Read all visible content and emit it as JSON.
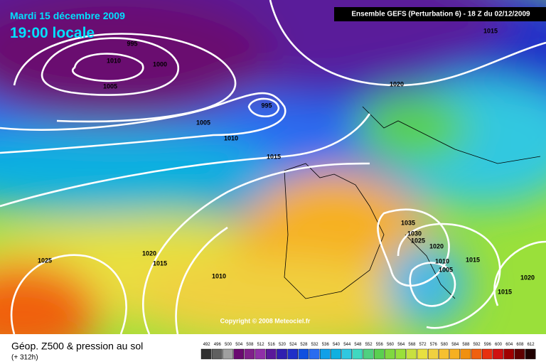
{
  "header": {
    "date": "Mardi 15 décembre 2009",
    "time": "19:00 locale",
    "model": "Ensemble GEFS (Perturbation 6)  - 18 Z du 02/12/2009"
  },
  "copyright": "Copyright © 2008 Meteociel.fr",
  "footer": {
    "title": "Géop. Z500 & pression au sol",
    "lead": "(+ 312h)"
  },
  "isobar_labels": [
    "1015",
    "995",
    "1010",
    "1000",
    "1005",
    "995",
    "1020",
    "1005",
    "1010",
    "1015",
    "1025",
    "1020",
    "1015",
    "1010",
    "1035",
    "1030",
    "1025",
    "1020",
    "1010",
    "1005",
    "1015",
    "1020",
    "1015"
  ],
  "scale": [
    492,
    496,
    500,
    504,
    508,
    512,
    516,
    520,
    524,
    528,
    532,
    536,
    540,
    544,
    548,
    552,
    556,
    560,
    564,
    568,
    572,
    576,
    580,
    584,
    588,
    592,
    596,
    600,
    604,
    608,
    612
  ]
}
